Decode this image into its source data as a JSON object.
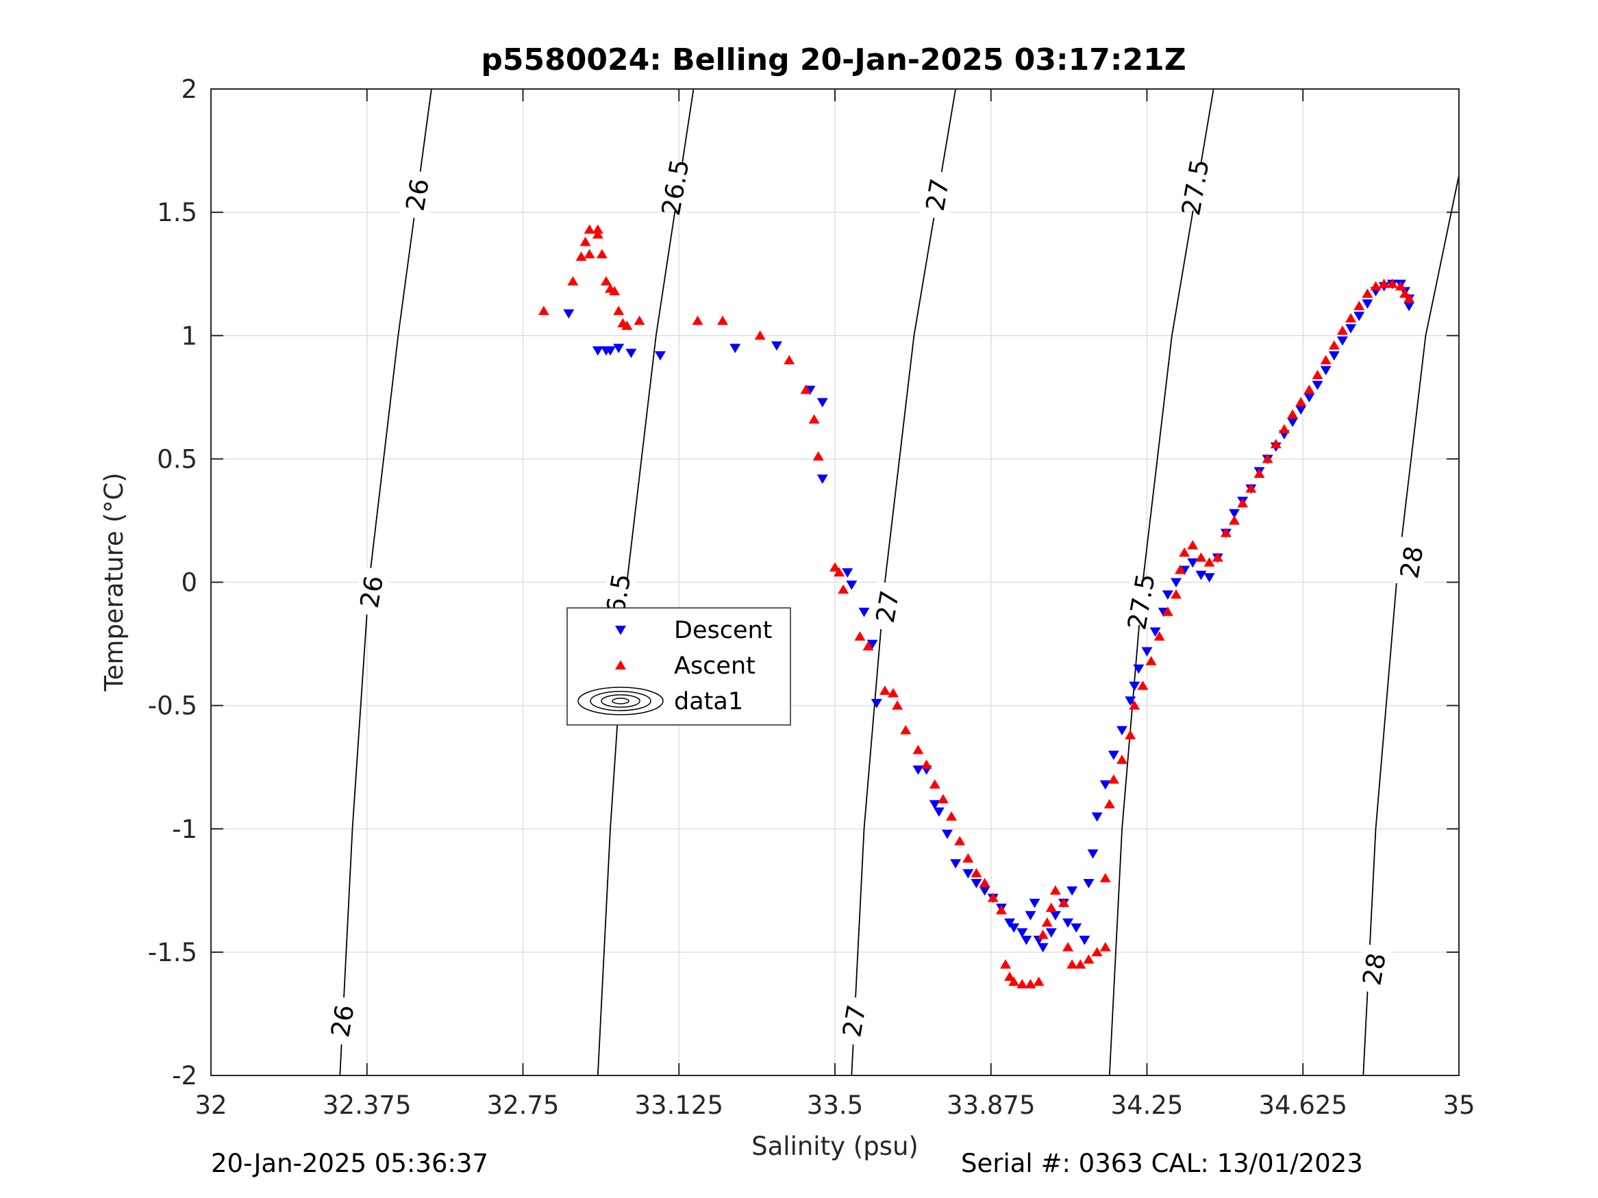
{
  "chart_data": {
    "type": "scatter",
    "title": "p5580024: Belling 20-Jan-2025 03:17:21Z",
    "xlabel": "Salinity (psu)",
    "ylabel": "Temperature (°C)",
    "xlim": [
      32,
      35
    ],
    "ylim": [
      -2,
      2
    ],
    "x_ticks": [
      32,
      32.375,
      32.75,
      33.125,
      33.5,
      33.875,
      34.25,
      34.625,
      35
    ],
    "x_tick_labels": [
      "32",
      "32.375",
      "32.75",
      "33.125",
      "33.5",
      "33.875",
      "34.25",
      "34.625",
      "35"
    ],
    "y_ticks": [
      2,
      1.5,
      1,
      0.5,
      0,
      -0.5,
      -1,
      -1.5,
      -2
    ],
    "y_tick_labels": [
      "2",
      "1.5",
      "1",
      "0.5",
      "0",
      "-0.5",
      "-1",
      "-1.5",
      "-2"
    ],
    "grid": true,
    "legend_position": "center-left",
    "series": [
      {
        "name": "Descent",
        "marker": "triangle-down",
        "color": "#0000ff",
        "points": [
          [
            32.86,
            1.09
          ],
          [
            32.93,
            0.94
          ],
          [
            32.95,
            0.94
          ],
          [
            32.96,
            0.94
          ],
          [
            32.98,
            0.95
          ],
          [
            33.01,
            0.93
          ],
          [
            33.08,
            0.92
          ],
          [
            33.26,
            0.95
          ],
          [
            33.36,
            0.96
          ],
          [
            33.44,
            0.78
          ],
          [
            33.47,
            0.73
          ],
          [
            33.47,
            0.42
          ],
          [
            33.53,
            0.04
          ],
          [
            33.54,
            -0.01
          ],
          [
            33.57,
            -0.12
          ],
          [
            33.59,
            -0.25
          ],
          [
            33.6,
            -0.49
          ],
          [
            33.7,
            -0.76
          ],
          [
            33.72,
            -0.76
          ],
          [
            33.74,
            -0.9
          ],
          [
            33.75,
            -0.93
          ],
          [
            33.77,
            -1.02
          ],
          [
            33.79,
            -1.14
          ],
          [
            33.82,
            -1.18
          ],
          [
            33.84,
            -1.22
          ],
          [
            33.86,
            -1.25
          ],
          [
            33.88,
            -1.28
          ],
          [
            33.9,
            -1.32
          ],
          [
            33.92,
            -1.38
          ],
          [
            33.93,
            -1.4
          ],
          [
            33.95,
            -1.42
          ],
          [
            33.96,
            -1.45
          ],
          [
            33.97,
            -1.35
          ],
          [
            33.98,
            -1.3
          ],
          [
            33.99,
            -1.45
          ],
          [
            34.0,
            -1.48
          ],
          [
            34.02,
            -1.42
          ],
          [
            34.03,
            -1.35
          ],
          [
            34.05,
            -1.3
          ],
          [
            34.06,
            -1.38
          ],
          [
            34.07,
            -1.25
          ],
          [
            34.08,
            -1.4
          ],
          [
            34.1,
            -1.45
          ],
          [
            34.11,
            -1.22
          ],
          [
            34.12,
            -1.1
          ],
          [
            34.13,
            -0.95
          ],
          [
            34.15,
            -0.82
          ],
          [
            34.17,
            -0.7
          ],
          [
            34.19,
            -0.6
          ],
          [
            34.21,
            -0.48
          ],
          [
            34.22,
            -0.42
          ],
          [
            34.23,
            -0.35
          ],
          [
            34.25,
            -0.28
          ],
          [
            34.27,
            -0.2
          ],
          [
            34.29,
            -0.12
          ],
          [
            34.3,
            -0.05
          ],
          [
            34.32,
            0.0
          ],
          [
            34.34,
            0.05
          ],
          [
            34.36,
            0.08
          ],
          [
            34.38,
            0.03
          ],
          [
            34.4,
            0.02
          ],
          [
            34.42,
            0.1
          ],
          [
            34.44,
            0.2
          ],
          [
            34.46,
            0.28
          ],
          [
            34.48,
            0.33
          ],
          [
            34.5,
            0.38
          ],
          [
            34.52,
            0.45
          ],
          [
            34.54,
            0.5
          ],
          [
            34.56,
            0.55
          ],
          [
            34.58,
            0.6
          ],
          [
            34.6,
            0.65
          ],
          [
            34.62,
            0.7
          ],
          [
            34.64,
            0.75
          ],
          [
            34.66,
            0.8
          ],
          [
            34.68,
            0.86
          ],
          [
            34.7,
            0.92
          ],
          [
            34.72,
            0.98
          ],
          [
            34.74,
            1.03
          ],
          [
            34.76,
            1.08
          ],
          [
            34.78,
            1.13
          ],
          [
            34.8,
            1.18
          ],
          [
            34.82,
            1.2
          ],
          [
            34.84,
            1.21
          ],
          [
            34.86,
            1.21
          ],
          [
            34.87,
            1.18
          ],
          [
            34.88,
            1.15
          ],
          [
            34.88,
            1.12
          ]
        ]
      },
      {
        "name": "Ascent",
        "marker": "triangle-up",
        "color": "#ff0000",
        "points": [
          [
            32.8,
            1.1
          ],
          [
            32.87,
            1.22
          ],
          [
            32.89,
            1.32
          ],
          [
            32.9,
            1.38
          ],
          [
            32.91,
            1.33
          ],
          [
            32.91,
            1.43
          ],
          [
            32.93,
            1.41
          ],
          [
            32.93,
            1.43
          ],
          [
            32.94,
            1.33
          ],
          [
            32.95,
            1.22
          ],
          [
            32.96,
            1.19
          ],
          [
            32.97,
            1.18
          ],
          [
            32.98,
            1.1
          ],
          [
            32.99,
            1.05
          ],
          [
            33.0,
            1.04
          ],
          [
            33.03,
            1.06
          ],
          [
            33.17,
            1.06
          ],
          [
            33.23,
            1.06
          ],
          [
            33.32,
            1.0
          ],
          [
            33.39,
            0.9
          ],
          [
            33.43,
            0.78
          ],
          [
            33.45,
            0.66
          ],
          [
            33.46,
            0.51
          ],
          [
            33.5,
            0.06
          ],
          [
            33.51,
            0.04
          ],
          [
            33.52,
            -0.03
          ],
          [
            33.56,
            -0.22
          ],
          [
            33.58,
            -0.26
          ],
          [
            33.62,
            -0.44
          ],
          [
            33.64,
            -0.45
          ],
          [
            33.65,
            -0.5
          ],
          [
            33.67,
            -0.6
          ],
          [
            33.7,
            -0.68
          ],
          [
            33.72,
            -0.74
          ],
          [
            33.74,
            -0.82
          ],
          [
            33.76,
            -0.88
          ],
          [
            33.78,
            -0.95
          ],
          [
            33.8,
            -1.05
          ],
          [
            33.82,
            -1.12
          ],
          [
            33.84,
            -1.18
          ],
          [
            33.86,
            -1.22
          ],
          [
            33.88,
            -1.28
          ],
          [
            33.9,
            -1.33
          ],
          [
            33.91,
            -1.55
          ],
          [
            33.92,
            -1.6
          ],
          [
            33.93,
            -1.62
          ],
          [
            33.95,
            -1.63
          ],
          [
            33.97,
            -1.63
          ],
          [
            33.99,
            -1.62
          ],
          [
            34.0,
            -1.43
          ],
          [
            34.01,
            -1.38
          ],
          [
            34.02,
            -1.32
          ],
          [
            34.03,
            -1.25
          ],
          [
            34.05,
            -1.3
          ],
          [
            34.06,
            -1.48
          ],
          [
            34.07,
            -1.55
          ],
          [
            34.09,
            -1.55
          ],
          [
            34.11,
            -1.53
          ],
          [
            34.13,
            -1.5
          ],
          [
            34.15,
            -1.48
          ],
          [
            34.15,
            -1.2
          ],
          [
            34.16,
            -0.9
          ],
          [
            34.17,
            -0.8
          ],
          [
            34.19,
            -0.72
          ],
          [
            34.21,
            -0.62
          ],
          [
            34.22,
            -0.5
          ],
          [
            34.24,
            -0.42
          ],
          [
            34.26,
            -0.32
          ],
          [
            34.28,
            -0.22
          ],
          [
            34.3,
            -0.12
          ],
          [
            34.32,
            -0.05
          ],
          [
            34.33,
            0.05
          ],
          [
            34.34,
            0.12
          ],
          [
            34.36,
            0.15
          ],
          [
            34.38,
            0.1
          ],
          [
            34.4,
            0.08
          ],
          [
            34.42,
            0.1
          ],
          [
            34.44,
            0.2
          ],
          [
            34.46,
            0.25
          ],
          [
            34.48,
            0.32
          ],
          [
            34.5,
            0.38
          ],
          [
            34.52,
            0.44
          ],
          [
            34.54,
            0.5
          ],
          [
            34.56,
            0.56
          ],
          [
            34.58,
            0.62
          ],
          [
            34.6,
            0.68
          ],
          [
            34.62,
            0.73
          ],
          [
            34.64,
            0.78
          ],
          [
            34.66,
            0.84
          ],
          [
            34.68,
            0.9
          ],
          [
            34.7,
            0.96
          ],
          [
            34.72,
            1.02
          ],
          [
            34.74,
            1.07
          ],
          [
            34.76,
            1.12
          ],
          [
            34.78,
            1.17
          ],
          [
            34.8,
            1.2
          ],
          [
            34.82,
            1.21
          ],
          [
            34.84,
            1.21
          ],
          [
            34.86,
            1.2
          ],
          [
            34.87,
            1.17
          ],
          [
            34.88,
            1.15
          ]
        ]
      }
    ],
    "contours": {
      "color": "#000000",
      "lines": [
        {
          "label": "26",
          "points": [
            [
              32.31,
              -2.0
            ],
            [
              32.34,
              -1.0
            ],
            [
              32.38,
              0.0
            ],
            [
              32.45,
              1.0
            ],
            [
              32.53,
              2.0
            ]
          ]
        },
        {
          "label": "26.5",
          "points": [
            [
              32.93,
              -2.0
            ],
            [
              32.96,
              -1.0
            ],
            [
              33.0,
              0.0
            ],
            [
              33.07,
              1.0
            ],
            [
              33.16,
              2.0
            ]
          ]
        },
        {
          "label": "27",
          "points": [
            [
              33.54,
              -2.0
            ],
            [
              33.57,
              -1.0
            ],
            [
              33.62,
              0.0
            ],
            [
              33.69,
              1.0
            ],
            [
              33.79,
              2.0
            ]
          ]
        },
        {
          "label": "27.5",
          "points": [
            [
              34.16,
              -2.0
            ],
            [
              34.19,
              -1.0
            ],
            [
              34.24,
              0.0
            ],
            [
              34.31,
              1.0
            ],
            [
              34.41,
              2.0
            ]
          ]
        },
        {
          "label": "28",
          "points": [
            [
              34.77,
              -2.0
            ],
            [
              34.8,
              -1.0
            ],
            [
              34.85,
              0.0
            ],
            [
              34.92,
              1.0
            ],
            [
              35.0,
              1.65
            ]
          ]
        }
      ],
      "label_positions": [
        {
          "label": "26",
          "at": [
            32.32,
            -1.78
          ]
        },
        {
          "label": "26",
          "at": [
            32.39,
            -0.04
          ]
        },
        {
          "label": "26",
          "at": [
            32.5,
            1.57
          ]
        },
        {
          "label": "26.5",
          "at": [
            32.98,
            -0.08
          ]
        },
        {
          "label": "26.5",
          "at": [
            33.12,
            1.6
          ]
        },
        {
          "label": "27",
          "at": [
            33.55,
            -1.78
          ]
        },
        {
          "label": "27",
          "at": [
            33.63,
            -0.1
          ]
        },
        {
          "label": "27",
          "at": [
            33.75,
            1.57
          ]
        },
        {
          "label": "27.5",
          "at": [
            34.24,
            -0.08
          ]
        },
        {
          "label": "27.5",
          "at": [
            34.37,
            1.6
          ]
        },
        {
          "label": "28",
          "at": [
            34.8,
            -1.57
          ]
        },
        {
          "label": "28",
          "at": [
            34.89,
            0.08
          ]
        }
      ]
    },
    "legend": {
      "entries": [
        {
          "label": "Descent",
          "marker": "triangle-down",
          "color": "#0000ff"
        },
        {
          "label": "Ascent",
          "marker": "triangle-up",
          "color": "#ff0000"
        },
        {
          "label": "data1",
          "marker": "contour",
          "color": "#000000"
        }
      ]
    }
  },
  "footer": {
    "left": "20-Jan-2025 05:36:37",
    "right": "Serial #: 0363  CAL: 13/01/2023"
  }
}
